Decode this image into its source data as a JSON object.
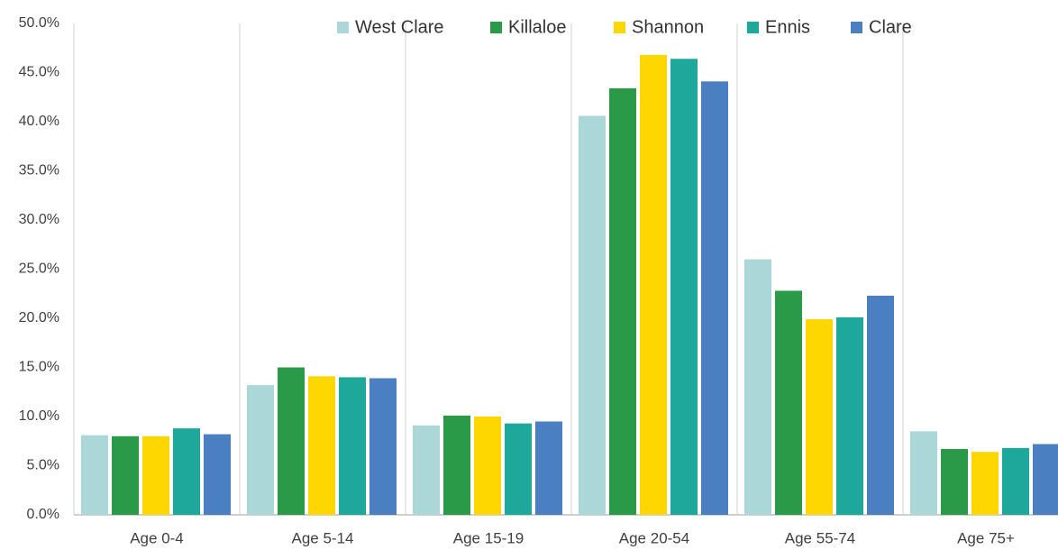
{
  "chart_data": {
    "type": "bar",
    "categories": [
      "Age 0-4",
      "Age 5-14",
      "Age 15-19",
      "Age 20-54",
      "Age 55-74",
      "Age 75+"
    ],
    "series": [
      {
        "name": "West Clare",
        "color": "#acd7d9",
        "values": [
          8.1,
          13.2,
          9.1,
          40.6,
          26.0,
          8.5
        ]
      },
      {
        "name": "Killaloe",
        "color": "#2b9a48",
        "values": [
          8.0,
          15.0,
          10.1,
          43.4,
          22.8,
          6.7
        ]
      },
      {
        "name": "Shannon",
        "color": "#fed600",
        "values": [
          8.0,
          14.1,
          10.0,
          46.8,
          19.9,
          6.4
        ]
      },
      {
        "name": "Ennis",
        "color": "#1ea89b",
        "values": [
          8.8,
          14.0,
          9.3,
          46.4,
          20.1,
          6.8
        ]
      },
      {
        "name": "Clare",
        "color": "#4a7fc1",
        "values": [
          8.2,
          13.9,
          9.5,
          44.1,
          22.3,
          7.2
        ]
      }
    ],
    "ylim": [
      0,
      50
    ],
    "yticks": [
      {
        "value": 0,
        "label": "0.0%"
      },
      {
        "value": 5,
        "label": "5.0%"
      },
      {
        "value": 10,
        "label": "10.0%"
      },
      {
        "value": 15,
        "label": "15.0%"
      },
      {
        "value": 20,
        "label": "20.0%"
      },
      {
        "value": 25,
        "label": "25.0%"
      },
      {
        "value": 30,
        "label": "30.0%"
      },
      {
        "value": 35,
        "label": "35.0%"
      },
      {
        "value": 40,
        "label": "40.0%"
      },
      {
        "value": 45,
        "label": "45.0%"
      },
      {
        "value": 50,
        "label": "50.0%"
      }
    ],
    "legend": "top"
  }
}
